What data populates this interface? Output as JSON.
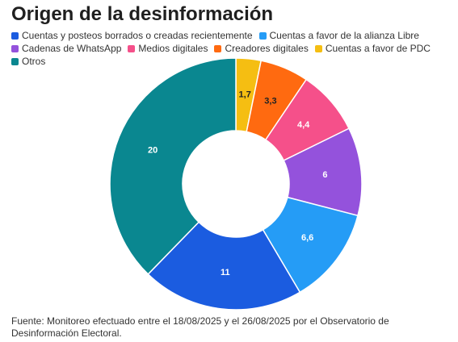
{
  "chart_data": {
    "type": "pie",
    "donut": true,
    "title": "Origen de la desinformación",
    "legend_position": "top",
    "series": [
      {
        "name": "Cuentas a favor de PDC",
        "value": 1.7,
        "label": "1,7",
        "color": "#f5be12",
        "label_color": "#222222"
      },
      {
        "name": "Creadores digitales",
        "value": 3.3,
        "label": "3,3",
        "color": "#ff6a10",
        "label_color": "#222222"
      },
      {
        "name": "Medios digitales",
        "value": 4.4,
        "label": "4,4",
        "color": "#f5508a",
        "label_color": "#ffffff"
      },
      {
        "name": "Cadenas de WhatsApp",
        "value": 6,
        "label": "6",
        "color": "#9452dc",
        "label_color": "#ffffff"
      },
      {
        "name": "Cuentas a favor de la alianza Libre",
        "value": 6.6,
        "label": "6,6",
        "color": "#259cf6",
        "label_color": "#ffffff"
      },
      {
        "name": "Cuentas y posteos borrados o creadas recientemente",
        "value": 11,
        "label": "11",
        "color": "#1b5ce0",
        "label_color": "#ffffff"
      },
      {
        "name": "Otros",
        "value": 20,
        "label": "20",
        "color": "#0a8790",
        "label_color": "#ffffff"
      }
    ],
    "legend_order": [
      "Cuentas y posteos borrados o creadas recientemente",
      "Cuentas a favor de la alianza Libre",
      "Cadenas de WhatsApp",
      "Medios digitales",
      "Creadores digitales",
      "Cuentas a favor de PDC",
      "Otros"
    ]
  },
  "source_note": "Fuente: Monitoreo efectuado entre el 18/08/2025 y el 26/08/2025 por el Observatorio de Desinformación Electoral."
}
